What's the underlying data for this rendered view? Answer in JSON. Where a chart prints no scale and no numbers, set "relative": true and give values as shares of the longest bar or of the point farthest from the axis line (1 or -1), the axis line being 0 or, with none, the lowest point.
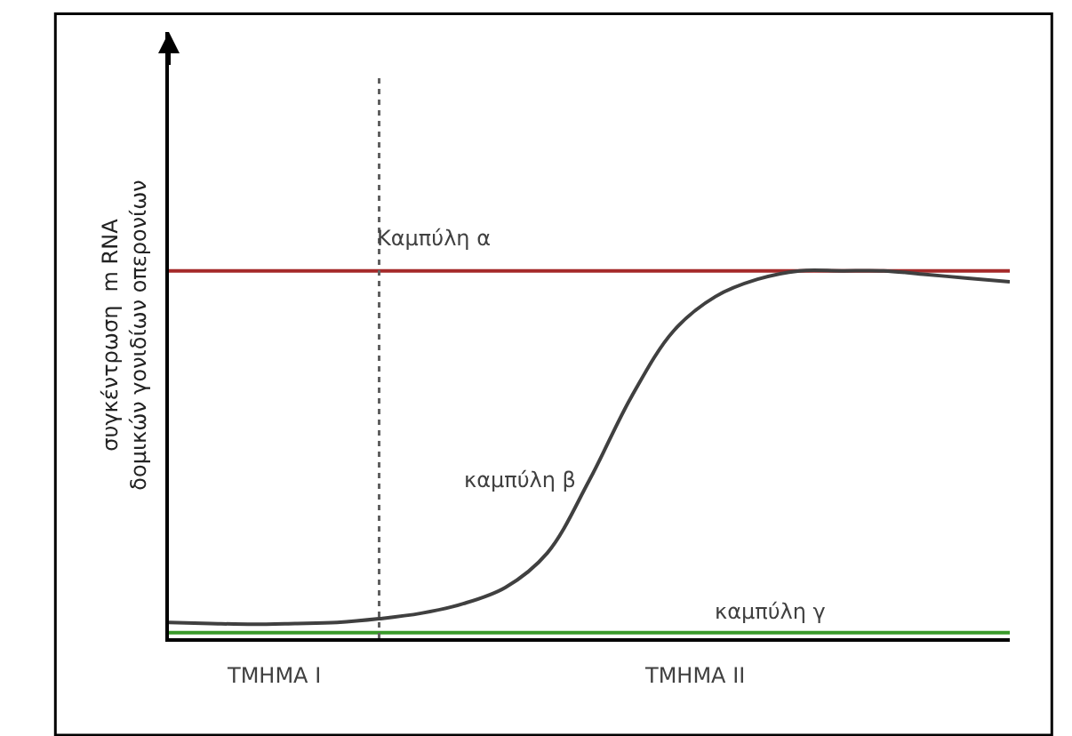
{
  "chart_data": {
    "type": "line",
    "relative": true,
    "ylabel": "συγκέντρωση  m RNA\nδομικών γονιδίων οπερονίων",
    "categories": [
      null,
      null,
      null,
      null,
      null,
      null,
      null,
      null,
      null,
      null,
      null,
      null,
      null,
      null,
      null,
      null,
      null,
      null,
      null,
      null,
      null
    ],
    "series": [
      {
        "name": "Καμπύλη α",
        "color": "#a52a2a",
        "values": [
          1,
          1,
          1,
          1,
          1,
          1,
          1,
          1,
          1,
          1,
          1,
          1,
          1,
          1,
          1,
          1,
          1,
          1,
          1,
          1,
          1
        ]
      },
      {
        "name": "καμπύλη β",
        "color": "#404040",
        "values": [
          0.043,
          0.04,
          0.038,
          0.04,
          0.043,
          0.053,
          0.068,
          0.094,
          0.138,
          0.232,
          0.43,
          0.657,
          0.836,
          0.93,
          0.977,
          1,
          1,
          1,
          0.99,
          0.98,
          0.97
        ]
      },
      {
        "name": "καμπύλη γ",
        "color": "#3a9a2a",
        "values": [
          0.015,
          0.015,
          0.015,
          0.015,
          0.015,
          0.015,
          0.015,
          0.015,
          0.015,
          0.015,
          0.015,
          0.015,
          0.015,
          0.015,
          0.015,
          0.015,
          0.015,
          0.015,
          0.015,
          0.015,
          0.015
        ]
      }
    ],
    "annotations": [
      "ΤΜΗΜΑ Ι",
      "ΤΜΗΜΑ ΙΙ"
    ],
    "legend": false,
    "marker": "none",
    "line_style": "solid"
  }
}
